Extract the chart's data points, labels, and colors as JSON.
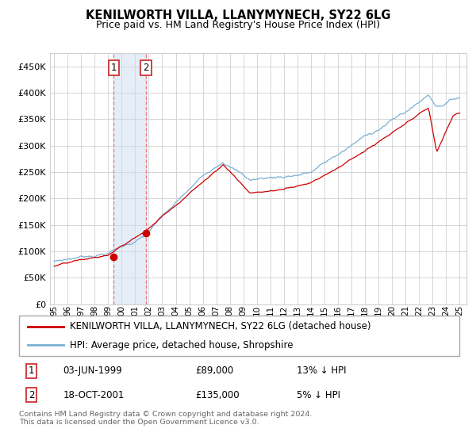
{
  "title": "KENILWORTH VILLA, LLANYMYNECH, SY22 6LG",
  "subtitle": "Price paid vs. HM Land Registry's House Price Index (HPI)",
  "line_color_red": "#cc0000",
  "line_color_blue": "#7ab0d4",
  "bg_color": "#ffffff",
  "grid_color": "#d0d0d0",
  "sale1_x": 1999.42,
  "sale1_price": 89000,
  "sale2_x": 2001.79,
  "sale2_price": 135000,
  "legend_line1": "KENILWORTH VILLA, LLANYMYNECH, SY22 6LG (detached house)",
  "legend_line2": "HPI: Average price, detached house, Shropshire",
  "table_row1": [
    "1",
    "03-JUN-1999",
    "£89,000",
    "13% ↓ HPI"
  ],
  "table_row2": [
    "2",
    "18-OCT-2001",
    "£135,000",
    "5% ↓ HPI"
  ],
  "footer": "Contains HM Land Registry data © Crown copyright and database right 2024.\nThis data is licensed under the Open Government Licence v3.0."
}
